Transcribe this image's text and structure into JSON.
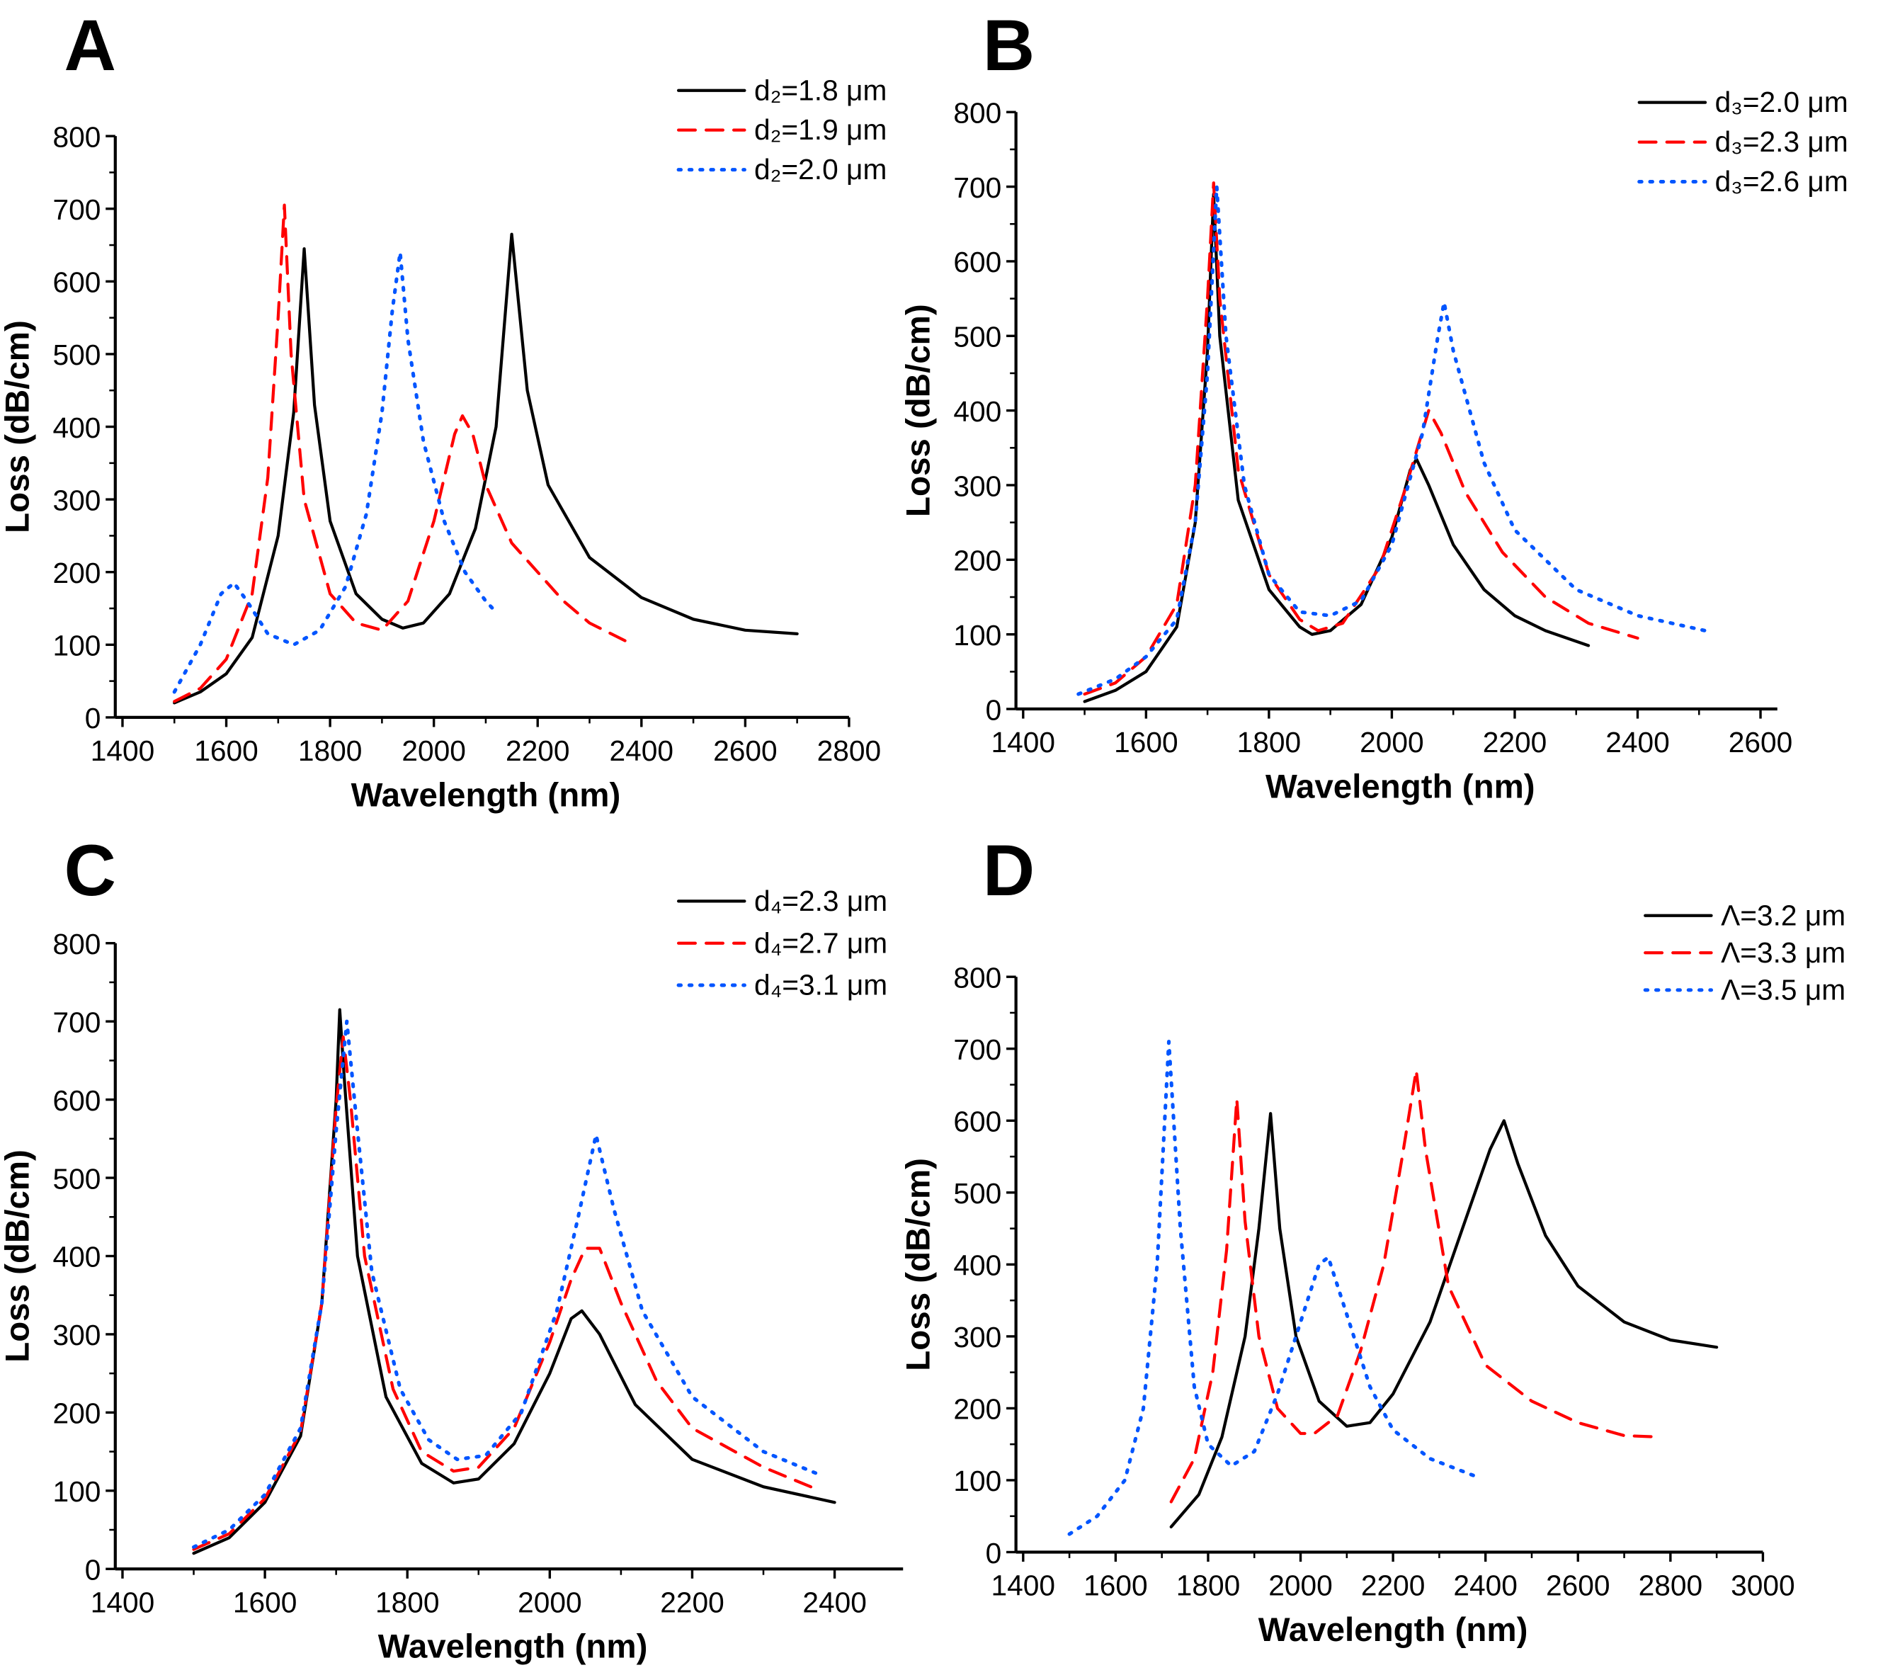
{
  "chart_data": [
    {
      "type": "line",
      "panel": "A",
      "xlabel": "Wavelength (nm)",
      "ylabel": "Loss (dB/cm)",
      "xlim": [
        1400,
        2800
      ],
      "ylim": [
        0,
        800
      ],
      "xticks": [
        1400,
        1600,
        1800,
        2000,
        2200,
        2400,
        2600,
        2800
      ],
      "yticks": [
        0,
        100,
        200,
        300,
        400,
        500,
        600,
        700,
        800
      ],
      "legend": "top-right",
      "series": [
        {
          "name": "d₂=1.8 μm",
          "color": "#000000",
          "style": "solid",
          "x": [
            1500,
            1550,
            1600,
            1650,
            1700,
            1730,
            1750,
            1770,
            1800,
            1850,
            1900,
            1940,
            1980,
            2030,
            2080,
            2120,
            2150,
            2180,
            2220,
            2300,
            2400,
            2500,
            2600,
            2700
          ],
          "y": [
            20,
            35,
            60,
            110,
            250,
            420,
            645,
            430,
            270,
            170,
            135,
            123,
            130,
            170,
            260,
            400,
            665,
            450,
            320,
            220,
            165,
            135,
            120,
            115
          ]
        },
        {
          "name": "d₂=1.9 μm",
          "color": "#ff0000",
          "style": "dashed",
          "x": [
            1500,
            1550,
            1600,
            1650,
            1680,
            1700,
            1712,
            1725,
            1750,
            1800,
            1850,
            1900,
            1950,
            2000,
            2040,
            2055,
            2075,
            2100,
            2150,
            2200,
            2250,
            2300,
            2370
          ],
          "y": [
            22,
            40,
            80,
            170,
            330,
            550,
            705,
            500,
            300,
            170,
            130,
            120,
            160,
            270,
            390,
            415,
            390,
            320,
            240,
            200,
            160,
            130,
            105
          ]
        },
        {
          "name": "d₂=2.0 μm",
          "color": "#0055ff",
          "style": "dotted",
          "x": [
            1500,
            1550,
            1590,
            1615,
            1640,
            1680,
            1730,
            1780,
            1830,
            1870,
            1900,
            1920,
            1935,
            1950,
            1980,
            2020,
            2060,
            2100,
            2120
          ],
          "y": [
            35,
            100,
            170,
            185,
            160,
            115,
            100,
            120,
            180,
            280,
            420,
            560,
            640,
            520,
            380,
            270,
            200,
            160,
            145
          ]
        }
      ]
    },
    {
      "type": "line",
      "panel": "B",
      "xlabel": "Wavelength (nm)",
      "ylabel": "Loss (dB/cm)",
      "xlim": [
        1400,
        2640
      ],
      "ylim": [
        0,
        800
      ],
      "xticks": [
        1400,
        1600,
        1800,
        2000,
        2200,
        2400,
        2600
      ],
      "yticks": [
        0,
        100,
        200,
        300,
        400,
        500,
        600,
        700,
        800
      ],
      "legend": "top-right",
      "series": [
        {
          "name": "d₃=2.0 μm",
          "color": "#000000",
          "style": "solid",
          "x": [
            1500,
            1550,
            1600,
            1650,
            1680,
            1700,
            1710,
            1720,
            1750,
            1800,
            1850,
            1870,
            1900,
            1950,
            2000,
            2030,
            2040,
            2060,
            2100,
            2150,
            2200,
            2250,
            2320
          ],
          "y": [
            10,
            25,
            50,
            110,
            250,
            480,
            690,
            500,
            280,
            160,
            110,
            100,
            105,
            140,
            230,
            320,
            335,
            300,
            220,
            160,
            125,
            105,
            85
          ]
        },
        {
          "name": "d₃=2.3 μm",
          "color": "#ff0000",
          "style": "dashed",
          "x": [
            1500,
            1550,
            1600,
            1650,
            1680,
            1700,
            1710,
            1720,
            1750,
            1800,
            1850,
            1880,
            1920,
            1980,
            2020,
            2060,
            2080,
            2120,
            2180,
            2250,
            2320,
            2400
          ],
          "y": [
            20,
            35,
            70,
            140,
            300,
            550,
            705,
            550,
            320,
            180,
            120,
            105,
            115,
            190,
            290,
            400,
            370,
            290,
            210,
            150,
            115,
            95
          ]
        },
        {
          "name": "d₃=2.6 μm",
          "color": "#0055ff",
          "style": "dotted",
          "x": [
            1490,
            1550,
            1600,
            1650,
            1680,
            1700,
            1715,
            1730,
            1760,
            1800,
            1850,
            1900,
            1950,
            2000,
            2050,
            2075,
            2085,
            2100,
            2150,
            2200,
            2300,
            2400,
            2510
          ],
          "y": [
            20,
            40,
            70,
            120,
            250,
            450,
            700,
            500,
            300,
            180,
            130,
            125,
            145,
            220,
            370,
            500,
            545,
            480,
            330,
            240,
            160,
            125,
            105
          ]
        }
      ]
    },
    {
      "type": "line",
      "panel": "C",
      "xlabel": "Wavelength (nm)",
      "ylabel": "Loss (dB/cm)",
      "xlim": [
        1400,
        2500
      ],
      "ylim": [
        0,
        800
      ],
      "xticks": [
        1400,
        1600,
        1800,
        2000,
        2200,
        2400
      ],
      "yticks": [
        0,
        100,
        200,
        300,
        400,
        500,
        600,
        700,
        800
      ],
      "legend": "top-right",
      "series": [
        {
          "name": "d₄=2.3 μm",
          "color": "#000000",
          "style": "solid",
          "x": [
            1500,
            1550,
            1600,
            1650,
            1680,
            1700,
            1705,
            1712,
            1730,
            1770,
            1820,
            1865,
            1900,
            1950,
            2000,
            2030,
            2045,
            2070,
            2120,
            2200,
            2300,
            2400
          ],
          "y": [
            20,
            40,
            85,
            170,
            340,
            600,
            715,
            620,
            400,
            220,
            135,
            110,
            115,
            160,
            250,
            320,
            330,
            300,
            210,
            140,
            105,
            85
          ]
        },
        {
          "name": "d₄=2.7 μm",
          "color": "#ff0000",
          "style": "dashed",
          "x": [
            1500,
            1550,
            1600,
            1650,
            1680,
            1700,
            1710,
            1720,
            1740,
            1780,
            1820,
            1865,
            1900,
            1950,
            2000,
            2030,
            2050,
            2070,
            2100,
            2150,
            2200,
            2300,
            2380
          ],
          "y": [
            25,
            45,
            90,
            175,
            340,
            590,
            680,
            600,
            400,
            230,
            150,
            125,
            130,
            180,
            290,
            370,
            410,
            410,
            340,
            240,
            180,
            130,
            100
          ]
        },
        {
          "name": "d₄=3.1 μm",
          "color": "#0055ff",
          "style": "dotted",
          "x": [
            1500,
            1550,
            1600,
            1650,
            1680,
            1700,
            1715,
            1730,
            1750,
            1790,
            1830,
            1870,
            1910,
            1960,
            2010,
            2040,
            2065,
            2090,
            2130,
            2200,
            2300,
            2380
          ],
          "y": [
            28,
            50,
            95,
            180,
            340,
            560,
            700,
            560,
            380,
            230,
            165,
            140,
            145,
            200,
            330,
            450,
            555,
            460,
            330,
            220,
            150,
            120
          ]
        }
      ]
    },
    {
      "type": "line",
      "panel": "D",
      "xlabel": "Wavelength (nm)",
      "ylabel": "Loss (dB/cm)",
      "xlim": [
        1400,
        3000
      ],
      "ylim": [
        0,
        800
      ],
      "xticks": [
        1400,
        1600,
        1800,
        2000,
        2200,
        2400,
        2600,
        2800,
        3000
      ],
      "yticks": [
        0,
        100,
        200,
        300,
        400,
        500,
        600,
        700,
        800
      ],
      "legend": "top-right",
      "series": [
        {
          "name": "Λ=3.2 μm",
          "color": "#000000",
          "style": "solid",
          "x": [
            1720,
            1780,
            1830,
            1880,
            1910,
            1935,
            1955,
            1990,
            2040,
            2100,
            2150,
            2200,
            2280,
            2350,
            2410,
            2440,
            2470,
            2530,
            2600,
            2700,
            2800,
            2900
          ],
          "y": [
            35,
            80,
            160,
            300,
            450,
            610,
            450,
            300,
            210,
            175,
            180,
            220,
            320,
            450,
            560,
            600,
            540,
            440,
            370,
            320,
            295,
            285
          ]
        },
        {
          "name": "Λ=3.3 μm",
          "color": "#ff0000",
          "style": "dashed",
          "x": [
            1720,
            1770,
            1810,
            1840,
            1862,
            1880,
            1910,
            1950,
            2000,
            2030,
            2080,
            2130,
            2180,
            2220,
            2250,
            2270,
            2320,
            2400,
            2500,
            2600,
            2700,
            2780
          ],
          "y": [
            70,
            130,
            250,
            420,
            630,
            460,
            300,
            200,
            165,
            165,
            190,
            280,
            400,
            550,
            670,
            560,
            370,
            260,
            210,
            180,
            162,
            160
          ]
        },
        {
          "name": "Λ=3.5 μm",
          "color": "#0055ff",
          "style": "dotted",
          "x": [
            1500,
            1560,
            1620,
            1660,
            1690,
            1715,
            1740,
            1770,
            1800,
            1850,
            1900,
            1950,
            2000,
            2040,
            2060,
            2090,
            2150,
            2200,
            2280,
            2380
          ],
          "y": [
            25,
            50,
            100,
            200,
            400,
            710,
            450,
            230,
            150,
            120,
            140,
            220,
            320,
            400,
            410,
            350,
            230,
            170,
            130,
            105
          ]
        }
      ]
    }
  ]
}
